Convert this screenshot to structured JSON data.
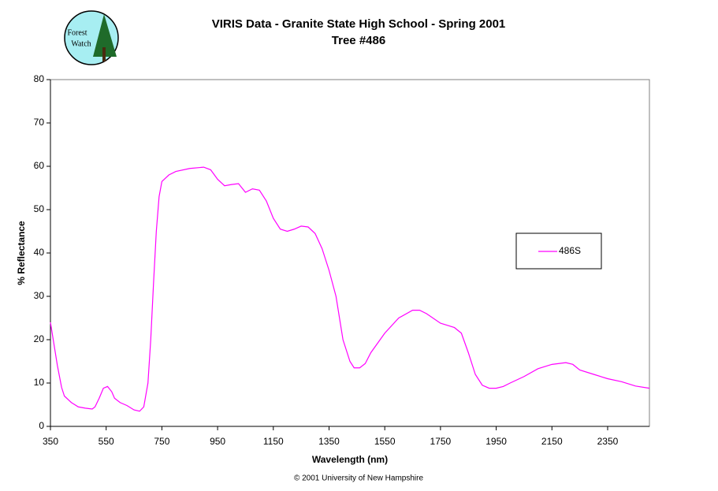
{
  "logo": [
    "Forest",
    "Watch"
  ],
  "chart_data": {
    "type": "line",
    "title": [
      "VIRIS Data -  Granite State High School - Spring 2001",
      "Tree #486"
    ],
    "x_label": "Wavelength (nm)",
    "y_label": "% Reflectance",
    "footer": "© 2001 University of New Hampshire",
    "x": [
      350,
      360,
      375,
      390,
      400,
      425,
      450,
      475,
      500,
      510,
      525,
      540,
      555,
      570,
      580,
      600,
      625,
      650,
      670,
      685,
      700,
      710,
      720,
      730,
      740,
      750,
      775,
      800,
      850,
      900,
      925,
      950,
      975,
      1000,
      1025,
      1050,
      1075,
      1100,
      1125,
      1150,
      1175,
      1200,
      1225,
      1250,
      1275,
      1300,
      1325,
      1350,
      1375,
      1400,
      1425,
      1440,
      1460,
      1480,
      1500,
      1550,
      1600,
      1650,
      1675,
      1700,
      1750,
      1775,
      1800,
      1825,
      1850,
      1875,
      1900,
      1925,
      1950,
      1975,
      2000,
      2050,
      2100,
      2150,
      2200,
      2225,
      2250,
      2300,
      2350,
      2400,
      2450,
      2500
    ],
    "series": [
      {
        "name": "486S",
        "color": "#ff00ff",
        "values": [
          24,
          20,
          14,
          9,
          7,
          5.5,
          4.5,
          4.2,
          4,
          4.5,
          6.5,
          8.8,
          9.2,
          8,
          6.5,
          5.5,
          4.8,
          3.8,
          3.5,
          4.5,
          10,
          20,
          33,
          45,
          53,
          56.5,
          58,
          58.8,
          59.5,
          59.8,
          59.2,
          57,
          55.5,
          55.8,
          56,
          54,
          54.8,
          54.5,
          52,
          48,
          45.5,
          45,
          45.5,
          46.2,
          46,
          44.5,
          41,
          36,
          30,
          20,
          15,
          13.5,
          13.5,
          14.5,
          17,
          21.5,
          25,
          26.8,
          26.8,
          26,
          23.8,
          23.3,
          22.8,
          21.5,
          17,
          12,
          9.5,
          8.8,
          8.8,
          9.2,
          10,
          11.5,
          13.3,
          14.3,
          14.7,
          14.3,
          13,
          12,
          11,
          10.3,
          9.3,
          8.8
        ]
      }
    ],
    "xlim": [
      350,
      2500
    ],
    "ylim": [
      0,
      80
    ],
    "xticks": [
      350,
      550,
      750,
      950,
      1150,
      1350,
      1550,
      1750,
      1950,
      2150,
      2350
    ],
    "yticks": [
      0,
      10,
      20,
      30,
      40,
      50,
      60,
      70,
      80
    ],
    "grid": false,
    "legend": "right"
  }
}
